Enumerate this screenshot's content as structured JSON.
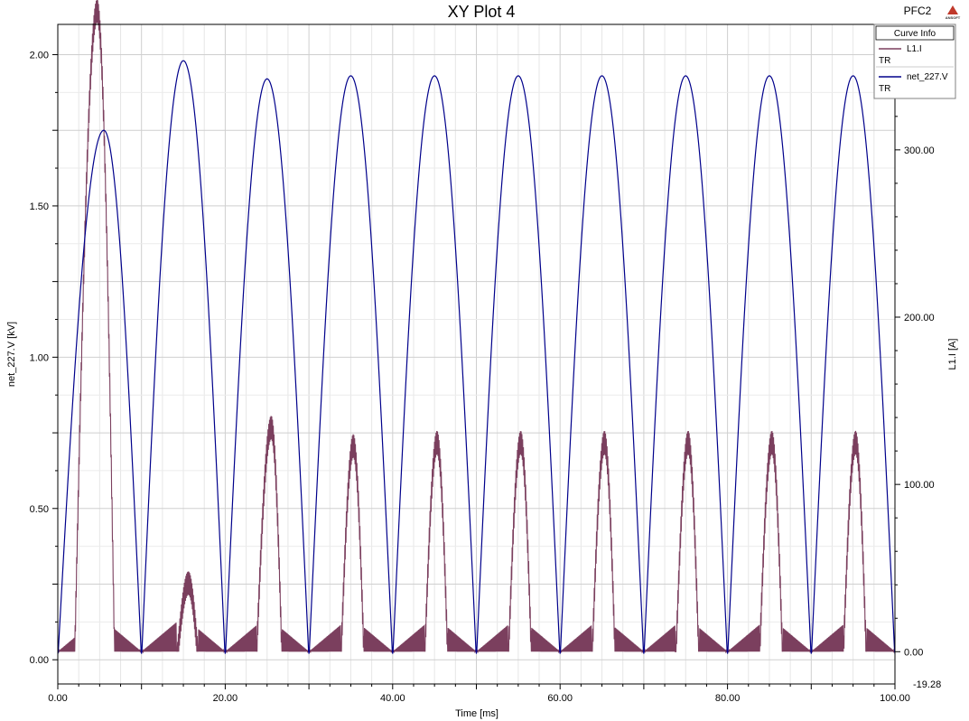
{
  "title": "XY Plot 4",
  "project": "PFC2",
  "logo_text": "ANSOFT",
  "colors": {
    "current": "#7B3F5E",
    "voltage": "#00008B",
    "grid": "#d9d9d9",
    "axis": "#000000"
  },
  "legend": {
    "title": "Curve Info",
    "entries": [
      {
        "name": "L1.I",
        "sub": "TR",
        "color": "#7B3F5E"
      },
      {
        "name": "net_227.V",
        "sub": "TR",
        "color": "#00008B"
      }
    ]
  },
  "chart_data": {
    "type": "line",
    "title": "XY Plot 4",
    "xlabel": "Time [ms]",
    "ylabel_left": "net_227.V [kV]",
    "ylabel_right": "L1.I [A]",
    "xlim": [
      0,
      100
    ],
    "ylim_left": [
      -0.08,
      2.1
    ],
    "ylim_right": [
      -19.28,
      375
    ],
    "x_ticks": [
      "0.00",
      "20.00",
      "40.00",
      "60.00",
      "80.00",
      "100.00"
    ],
    "y_left_ticks": [
      "0.00",
      "0.50",
      "1.00",
      "1.50",
      "2.00"
    ],
    "y_right_ticks": [
      "0.00",
      "100.00",
      "200.00",
      "300.00"
    ],
    "y_right_min_label": "-19.28",
    "grid": true,
    "legend_position": "top-right",
    "series": [
      {
        "name": "net_227.V",
        "axis": "left",
        "period_ms": 10,
        "peaks": [
          {
            "t": 5.5,
            "v": 1.75
          },
          {
            "t": 15,
            "v": 1.98
          },
          {
            "t": 25,
            "v": 1.92
          },
          {
            "t": 35,
            "v": 1.93
          },
          {
            "t": 45,
            "v": 1.93
          },
          {
            "t": 55,
            "v": 1.93
          },
          {
            "t": 65,
            "v": 1.93
          },
          {
            "t": 75,
            "v": 1.93
          },
          {
            "t": 85,
            "v": 1.93
          },
          {
            "t": 95,
            "v": 1.93
          }
        ],
        "zeros": [
          0,
          10,
          20,
          30,
          40,
          50,
          60,
          70,
          80,
          90,
          100
        ]
      },
      {
        "name": "L1.I",
        "axis": "right",
        "pulses": [
          {
            "start": 2.0,
            "peak_t": 4.7,
            "end": 6.8,
            "peak": 390
          },
          {
            "start": 14.2,
            "peak_t": 15.6,
            "end": 16.8,
            "peak": 48
          },
          {
            "start": 23.7,
            "peak_t": 25.5,
            "end": 26.8,
            "peak": 141
          },
          {
            "start": 33.8,
            "peak_t": 35.3,
            "end": 36.6,
            "peak": 130
          },
          {
            "start": 43.8,
            "peak_t": 45.3,
            "end": 46.6,
            "peak": 132
          },
          {
            "start": 53.8,
            "peak_t": 55.3,
            "end": 56.6,
            "peak": 132
          },
          {
            "start": 63.8,
            "peak_t": 65.3,
            "end": 66.6,
            "peak": 132
          },
          {
            "start": 73.8,
            "peak_t": 75.3,
            "end": 76.6,
            "peak": 132
          },
          {
            "start": 83.8,
            "peak_t": 85.3,
            "end": 86.6,
            "peak": 132
          },
          {
            "start": 93.8,
            "peak_t": 95.3,
            "end": 96.6,
            "peak": 132
          }
        ],
        "valley_ripple_peak": 16
      }
    ]
  }
}
